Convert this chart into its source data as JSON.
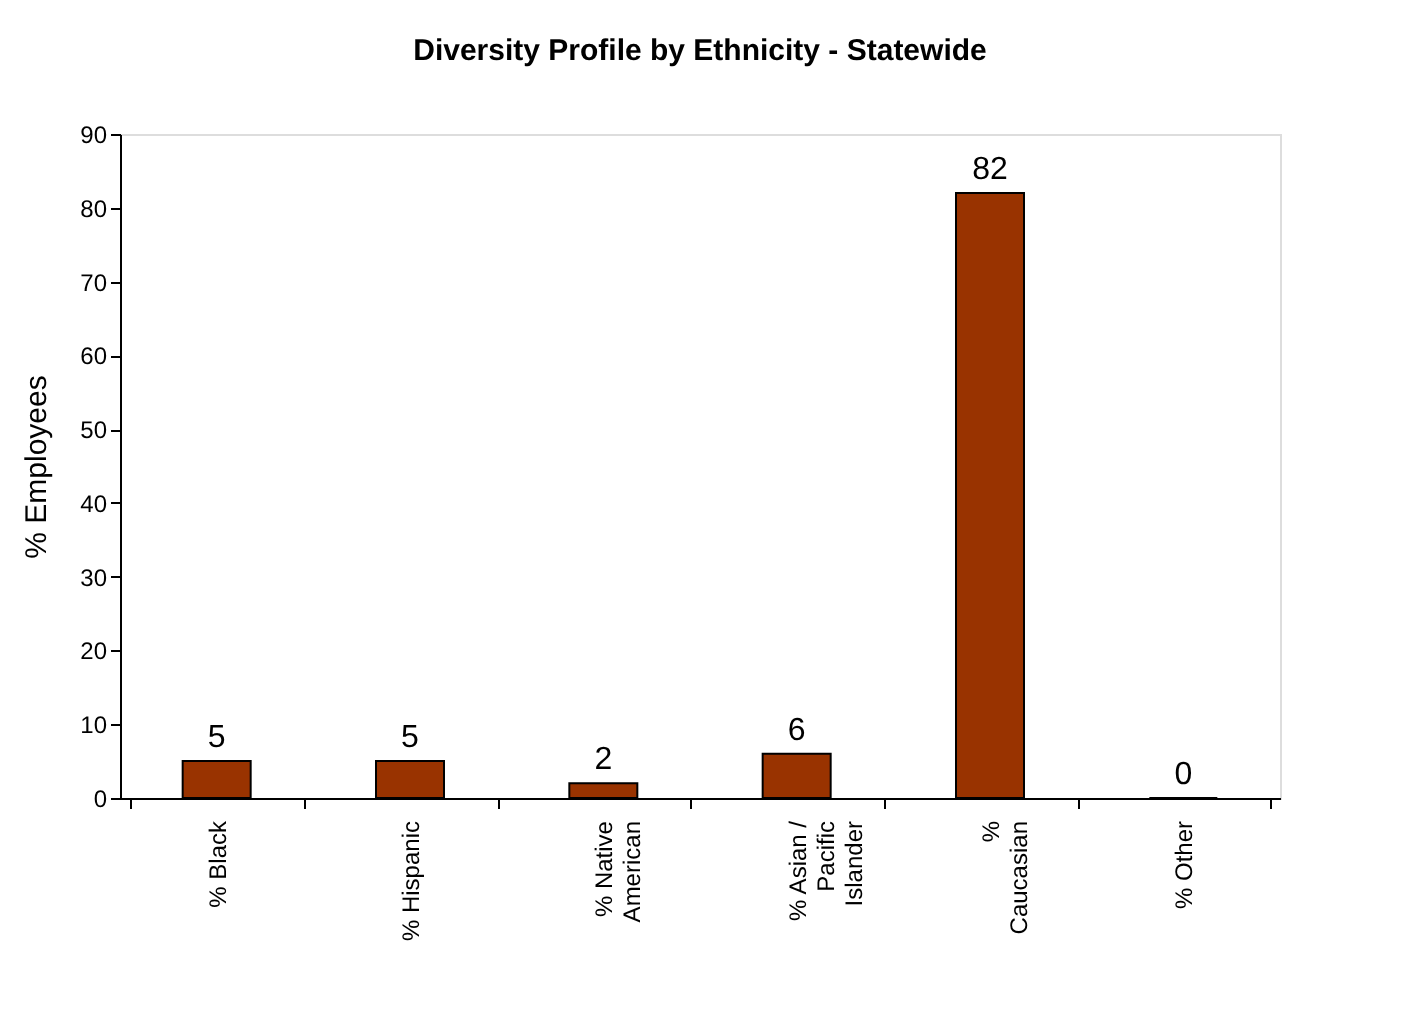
{
  "chart_data": {
    "type": "bar",
    "title": "Diversity Profile by Ethnicity - Statewide",
    "ylabel": "% Employees",
    "categories": [
      "% Black",
      "% Hispanic",
      "% Native American",
      "% Asian / Pacific Islander",
      "% Caucasian",
      "% Other"
    ],
    "values": [
      5,
      5,
      2,
      6,
      82,
      0
    ],
    "color": "#993300",
    "ylim": [
      0,
      90
    ],
    "yticks": [
      0,
      10,
      20,
      30,
      40,
      50,
      60,
      70,
      80,
      90
    ],
    "grid": false,
    "data_labels": true
  }
}
